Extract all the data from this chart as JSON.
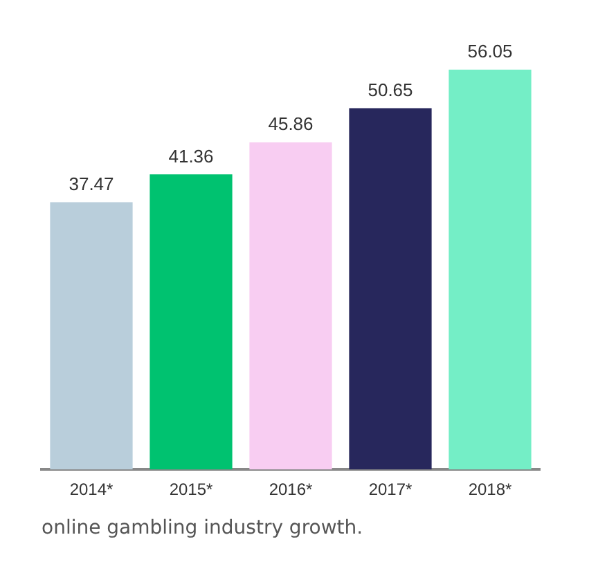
{
  "chart_data": {
    "type": "bar",
    "categories": [
      "2014*",
      "2015*",
      "2016*",
      "2017*",
      "2018*"
    ],
    "values": [
      37.47,
      41.36,
      45.86,
      50.65,
      56.05
    ],
    "colors": [
      "#b9cedb",
      "#00c270",
      "#f8cdf2",
      "#27275c",
      "#74eec6"
    ],
    "data_labels": true,
    "annotations": [
      "online gambling industry growth."
    ]
  }
}
